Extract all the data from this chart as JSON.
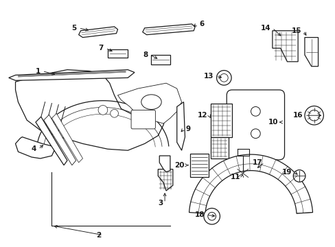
{
  "bg": "#ffffff",
  "lc": "#1a1a1a",
  "fig_w": 4.89,
  "fig_h": 3.6,
  "dpi": 100,
  "fs": 7.5,
  "lw": 0.9
}
